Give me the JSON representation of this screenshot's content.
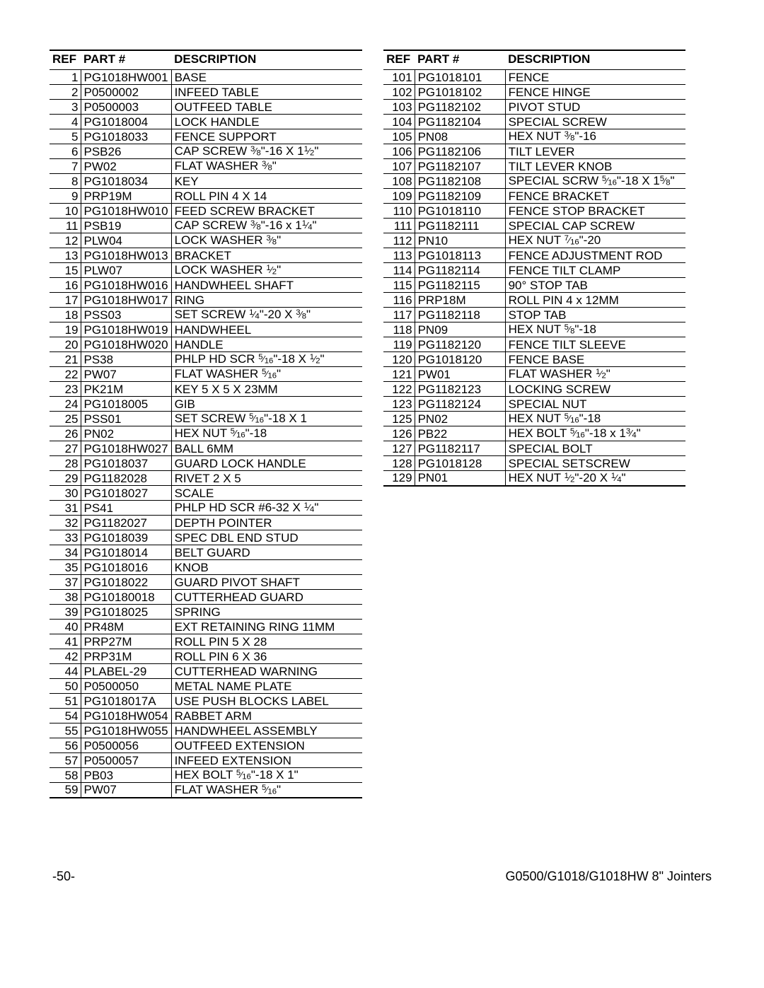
{
  "columns": {
    "ref": "REF",
    "part": "PART #",
    "desc": "DESCRIPTION"
  },
  "footer": {
    "left": "-50-",
    "right": "G0500/G1018/G1018HW  8\" Jointers"
  },
  "left_table": [
    {
      "ref": "1",
      "part": "PG1018HW001",
      "desc": "BASE"
    },
    {
      "ref": "2",
      "part": "P0500002",
      "desc": "INFEED TABLE"
    },
    {
      "ref": "3",
      "part": "P0500003",
      "desc": "OUTFEED TABLE"
    },
    {
      "ref": "4",
      "part": "PG1018004",
      "desc": "LOCK HANDLE"
    },
    {
      "ref": "5",
      "part": "PG1018033",
      "desc": "FENCE SUPPORT"
    },
    {
      "ref": "6",
      "part": "PSB26",
      "desc": "CAP SCREW {3/8}\"-16 X 1{1/2}\""
    },
    {
      "ref": "7",
      "part": "PW02",
      "desc": "FLAT WASHER {3/8}\""
    },
    {
      "ref": "8",
      "part": "PG1018034",
      "desc": "KEY"
    },
    {
      "ref": "9",
      "part": "PRP19M",
      "desc": "ROLL PIN 4  X 14"
    },
    {
      "ref": "10",
      "part": "PG1018HW010",
      "desc": "FEED SCREW BRACKET"
    },
    {
      "ref": "11",
      "part": "PSB19",
      "desc": "CAP SCREW {3/8}\"-16 x 1{1/4}\""
    },
    {
      "ref": "12",
      "part": "PLW04",
      "desc": "LOCK WASHER {3/8}\""
    },
    {
      "ref": "13",
      "part": "PG1018HW013",
      "desc": "BRACKET"
    },
    {
      "ref": "15",
      "part": "PLW07",
      "desc": "LOCK WASHER {1/2}\""
    },
    {
      "ref": "16",
      "part": "PG1018HW016",
      "desc": "HANDWHEEL SHAFT"
    },
    {
      "ref": "17",
      "part": "PG1018HW017",
      "desc": "RING"
    },
    {
      "ref": "18",
      "part": "PSS03",
      "desc": "SET SCREW {1/4}\"-20 X {3/8}\""
    },
    {
      "ref": "19",
      "part": "PG1018HW019",
      "desc": "HANDWHEEL"
    },
    {
      "ref": "20",
      "part": "PG1018HW020",
      "desc": "HANDLE"
    },
    {
      "ref": "21",
      "part": "PS38",
      "desc": "PHLP HD SCR {5/16}\"-18 X {1/2}\""
    },
    {
      "ref": "22",
      "part": "PW07",
      "desc": "FLAT WASHER {5/16}\""
    },
    {
      "ref": "23",
      "part": "PK21M",
      "desc": "KEY 5 X 5 X 23MM"
    },
    {
      "ref": "24",
      "part": "PG1018005",
      "desc": "GIB"
    },
    {
      "ref": "25",
      "part": "PSS01",
      "desc": "SET SCREW {5/16}\"-18 X 1"
    },
    {
      "ref": "26",
      "part": "PN02",
      "desc": "HEX NUT {5/16}\"-18"
    },
    {
      "ref": "27",
      "part": "PG1018HW027",
      "desc": "BALL 6MM"
    },
    {
      "ref": "28",
      "part": "PG1018037",
      "desc": "GUARD LOCK HANDLE"
    },
    {
      "ref": "29",
      "part": "PG1182028",
      "desc": "RIVET 2 X 5"
    },
    {
      "ref": "30",
      "part": "PG1018027",
      "desc": "SCALE"
    },
    {
      "ref": "31",
      "part": "PS41",
      "desc": "PHLP HD SCR #6-32 X {1/4}\""
    },
    {
      "ref": "32",
      "part": "PG1182027",
      "desc": "DEPTH POINTER"
    },
    {
      "ref": "33",
      "part": "PG1018039",
      "desc": "SPEC DBL END STUD"
    },
    {
      "ref": "34",
      "part": "PG1018014",
      "desc": "BELT GUARD"
    },
    {
      "ref": "35",
      "part": "PG1018016",
      "desc": "KNOB"
    },
    {
      "ref": "37",
      "part": "PG1018022",
      "desc": "GUARD PIVOT SHAFT"
    },
    {
      "ref": "38",
      "part": "PG10180018",
      "desc": "CUTTERHEAD GUARD"
    },
    {
      "ref": "39",
      "part": "PG1018025",
      "desc": "SPRING"
    },
    {
      "ref": "40",
      "part": "PR48M",
      "desc": "EXT RETAINING RING 11MM"
    },
    {
      "ref": "41",
      "part": "PRP27M",
      "desc": "ROLL PIN 5 X 28"
    },
    {
      "ref": "42",
      "part": "PRP31M",
      "desc": "ROLL PIN 6 X 36"
    },
    {
      "ref": "44",
      "part": "PLABEL-29",
      "desc": "CUTTERHEAD WARNING"
    },
    {
      "ref": "50",
      "part": "P0500050",
      "desc": "METAL NAME PLATE"
    },
    {
      "ref": "51",
      "part": "PG1018017A",
      "desc": "USE PUSH BLOCKS LABEL"
    },
    {
      "ref": "54",
      "part": "PG1018HW054",
      "desc": "RABBET ARM"
    },
    {
      "ref": "55",
      "part": "PG1018HW055",
      "desc": "HANDWHEEL ASSEMBLY"
    },
    {
      "ref": "56",
      "part": "P0500056",
      "desc": "OUTFEED EXTENSION"
    },
    {
      "ref": "57",
      "part": "P0500057",
      "desc": "INFEED EXTENSION"
    },
    {
      "ref": "58",
      "part": "PB03",
      "desc": "HEX BOLT {5/16}\"-18 X 1\""
    },
    {
      "ref": "59",
      "part": "PW07",
      "desc": "FLAT WASHER {5/16}\""
    }
  ],
  "right_table": [
    {
      "ref": "101",
      "part": "PG1018101",
      "desc": "FENCE"
    },
    {
      "ref": "102",
      "part": "PG1018102",
      "desc": "FENCE HINGE"
    },
    {
      "ref": "103",
      "part": "PG1182102",
      "desc": "PIVOT STUD"
    },
    {
      "ref": "104",
      "part": "PG1182104",
      "desc": "SPECIAL SCREW"
    },
    {
      "ref": "105",
      "part": "PN08",
      "desc": "HEX NUT {3/8}\"-16"
    },
    {
      "ref": "106",
      "part": "PG1182106",
      "desc": "TILT LEVER"
    },
    {
      "ref": "107",
      "part": "PG1182107",
      "desc": "TILT LEVER KNOB"
    },
    {
      "ref": "108",
      "part": "PG1182108",
      "desc": "SPECIAL SCRW {5/16}\"-18 X 1{5/8}\""
    },
    {
      "ref": "109",
      "part": "PG1182109",
      "desc": "FENCE BRACKET"
    },
    {
      "ref": "110",
      "part": "PG1018110",
      "desc": "FENCE STOP BRACKET"
    },
    {
      "ref": "111",
      "part": "PG1182111",
      "desc": "SPECIAL CAP SCREW"
    },
    {
      "ref": "112",
      "part": "PN10",
      "desc": "HEX NUT {7/16}\"-20"
    },
    {
      "ref": "113",
      "part": "PG1018113",
      "desc": "FENCE ADJUSTMENT ROD"
    },
    {
      "ref": "114",
      "part": "PG1182114",
      "desc": "FENCE TILT CLAMP"
    },
    {
      "ref": "115",
      "part": "PG1182115",
      "desc": "90° STOP TAB"
    },
    {
      "ref": "116",
      "part": "PRP18M",
      "desc": "ROLL PIN 4 x 12MM"
    },
    {
      "ref": "117",
      "part": "PG1182118",
      "desc": "STOP TAB"
    },
    {
      "ref": "118",
      "part": "PN09",
      "desc": "HEX NUT {5/8}\"-18"
    },
    {
      "ref": "119",
      "part": "PG1182120",
      "desc": "FENCE TILT SLEEVE"
    },
    {
      "ref": "120",
      "part": "PG1018120",
      "desc": "FENCE BASE"
    },
    {
      "ref": "121",
      "part": "PW01",
      "desc": "FLAT WASHER {1/2}\""
    },
    {
      "ref": "122",
      "part": "PG1182123",
      "desc": "LOCKING SCREW"
    },
    {
      "ref": "123",
      "part": "PG1182124",
      "desc": "SPECIAL NUT"
    },
    {
      "ref": "125",
      "part": "PN02",
      "desc": "HEX NUT {5/16}\"-18"
    },
    {
      "ref": "126",
      "part": "PB22",
      "desc": "HEX BOLT {5/16}\"-18 x 1{3/4}\""
    },
    {
      "ref": "127",
      "part": "PG1182117",
      "desc": "SPECIAL BOLT"
    },
    {
      "ref": "128",
      "part": "PG1018128",
      "desc": "SPECIAL SETSCREW"
    },
    {
      "ref": "129",
      "part": "PN01",
      "desc": "HEX NUT {1/2}\"-20 X {1/4}\""
    }
  ]
}
